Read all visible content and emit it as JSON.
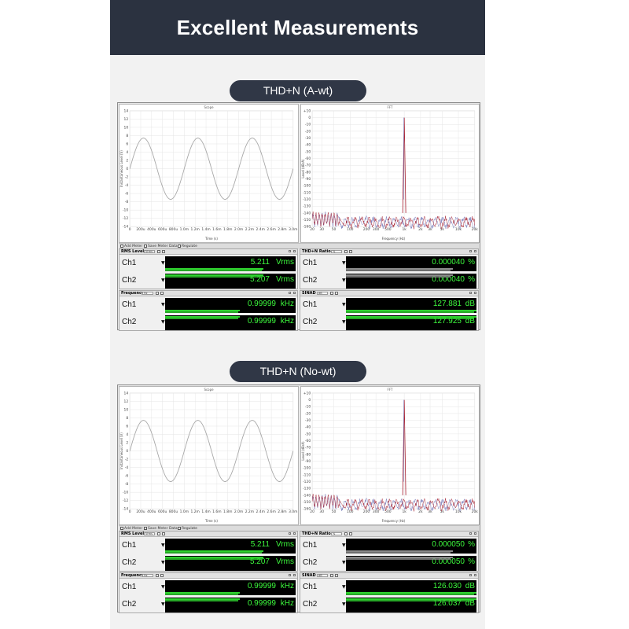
{
  "header": {
    "title": "Excellent Measurements"
  },
  "colors": {
    "header_bg": "#2b3240",
    "pill_bg": "#303746",
    "meter_green": "#3df93d",
    "bar_green": "#2fd12f",
    "scope_trace": "#a8a8a8",
    "fft_trace": "#a3192a"
  },
  "sections": [
    {
      "pill": "THD+N (A-wt)",
      "scope": {
        "title": "Scope",
        "xlabel": "Time (s)",
        "ylabel": "Instantaneous Level (V)",
        "y_ticks": [
          "14",
          "12",
          "10",
          "8",
          "6",
          "4",
          "2",
          "0",
          "-2",
          "-4",
          "-6",
          "-8",
          "-10",
          "-12",
          "-14"
        ],
        "x_ticks": [
          "0",
          "200u",
          "400u",
          "600u",
          "800u",
          "1.0m",
          "1.2m",
          "1.4m",
          "1.6m",
          "1.8m",
          "2.0m",
          "2.2m",
          "2.4m",
          "2.6m",
          "2.8m",
          "3.0m"
        ]
      },
      "fft": {
        "title": "FFT",
        "xlabel": "Frequency (Hz)",
        "ylabel": "Level (dBrA)",
        "y_ticks": [
          "+10",
          "0",
          "-10",
          "-20",
          "-30",
          "-40",
          "-50",
          "-60",
          "-70",
          "-80",
          "-90",
          "-100",
          "-110",
          "-120",
          "-130",
          "-140",
          "-150",
          "-160"
        ],
        "x_ticks": [
          "20",
          "30",
          "50",
          "100",
          "200",
          "300",
          "500",
          "1k",
          "2k",
          "3k",
          "5k",
          "10k",
          "20k"
        ]
      },
      "toolbar": {
        "add_meter": "Add Meter",
        "save_meter_data": "Save Meter Data",
        "regulate": "Regulate"
      },
      "meters": [
        {
          "title": "RMS Level",
          "unit_select": "Vrms",
          "rows": [
            {
              "ch": "Ch1",
              "value": "5.211",
              "unit": "Vrms",
              "bar_fraction": 0.75,
              "bar_color": "green"
            },
            {
              "ch": "Ch2",
              "value": "5.207",
              "unit": "Vrms",
              "bar_fraction": 0.75,
              "bar_color": "green"
            }
          ]
        },
        {
          "title": "THD+N Ratio",
          "unit_select": "%",
          "rows": [
            {
              "ch": "Ch1",
              "value": "0.000040",
              "unit": "%",
              "bar_fraction": 0.82,
              "bar_color": "gray"
            },
            {
              "ch": "Ch2",
              "value": "0.000040",
              "unit": "%",
              "bar_fraction": 0.82,
              "bar_color": "gray"
            }
          ]
        },
        {
          "title": "Frequency",
          "unit_select": "Hz",
          "rows": [
            {
              "ch": "Ch1",
              "value": "0.99999",
              "unit": "kHz",
              "bar_fraction": 0.57,
              "bar_color": "green"
            },
            {
              "ch": "Ch2",
              "value": "0.99999",
              "unit": "kHz",
              "bar_fraction": 0.57,
              "bar_color": "green"
            }
          ]
        },
        {
          "title": "SINAD",
          "unit_select": "dB",
          "rows": [
            {
              "ch": "Ch1",
              "value": "127.881",
              "unit": "dB",
              "bar_fraction": 1.0,
              "bar_color": "green"
            },
            {
              "ch": "Ch2",
              "value": "127.925",
              "unit": "dB",
              "bar_fraction": 1.0,
              "bar_color": "green"
            }
          ]
        }
      ]
    },
    {
      "pill": "THD+N (No-wt)",
      "scope": {
        "title": "Scope",
        "xlabel": "Time (s)",
        "ylabel": "Instantaneous Level (V)",
        "y_ticks": [
          "14",
          "12",
          "10",
          "8",
          "6",
          "4",
          "2",
          "0",
          "-2",
          "-4",
          "-6",
          "-8",
          "-10",
          "-12",
          "-14"
        ],
        "x_ticks": [
          "0",
          "200u",
          "400u",
          "600u",
          "800u",
          "1.0m",
          "1.2m",
          "1.4m",
          "1.6m",
          "1.8m",
          "2.0m",
          "2.2m",
          "2.4m",
          "2.6m",
          "2.8m",
          "3.0m"
        ]
      },
      "fft": {
        "title": "FFT",
        "xlabel": "Frequency (Hz)",
        "ylabel": "Level (dBrA)",
        "y_ticks": [
          "+10",
          "0",
          "-10",
          "-20",
          "-30",
          "-40",
          "-50",
          "-60",
          "-70",
          "-80",
          "-90",
          "-100",
          "-110",
          "-120",
          "-130",
          "-140",
          "-150",
          "-160"
        ],
        "x_ticks": [
          "20",
          "30",
          "50",
          "100",
          "200",
          "300",
          "500",
          "1k",
          "2k",
          "3k",
          "5k",
          "10k",
          "20k"
        ]
      },
      "toolbar": {
        "add_meter": "Add Meter",
        "save_meter_data": "Save Meter Data",
        "regulate": "Regulate"
      },
      "meters": [
        {
          "title": "RMS Level",
          "unit_select": "Vrms",
          "rows": [
            {
              "ch": "Ch1",
              "value": "5.211",
              "unit": "Vrms",
              "bar_fraction": 0.75,
              "bar_color": "green"
            },
            {
              "ch": "Ch2",
              "value": "5.207",
              "unit": "Vrms",
              "bar_fraction": 0.75,
              "bar_color": "green"
            }
          ]
        },
        {
          "title": "THD+N Ratio",
          "unit_select": "%",
          "rows": [
            {
              "ch": "Ch1",
              "value": "0.000050",
              "unit": "%",
              "bar_fraction": 0.82,
              "bar_color": "gray"
            },
            {
              "ch": "Ch2",
              "value": "0.000050",
              "unit": "%",
              "bar_fraction": 0.82,
              "bar_color": "gray"
            }
          ]
        },
        {
          "title": "Frequency",
          "unit_select": "Hz",
          "rows": [
            {
              "ch": "Ch1",
              "value": "0.99999",
              "unit": "kHz",
              "bar_fraction": 0.57,
              "bar_color": "green"
            },
            {
              "ch": "Ch2",
              "value": "0.99999",
              "unit": "kHz",
              "bar_fraction": 0.57,
              "bar_color": "green"
            }
          ]
        },
        {
          "title": "SINAD",
          "unit_select": "dB",
          "rows": [
            {
              "ch": "Ch1",
              "value": "126.030",
              "unit": "dB",
              "bar_fraction": 1.0,
              "bar_color": "green"
            },
            {
              "ch": "Ch2",
              "value": "126.037",
              "unit": "dB",
              "bar_fraction": 1.0,
              "bar_color": "green"
            }
          ]
        }
      ]
    }
  ]
}
